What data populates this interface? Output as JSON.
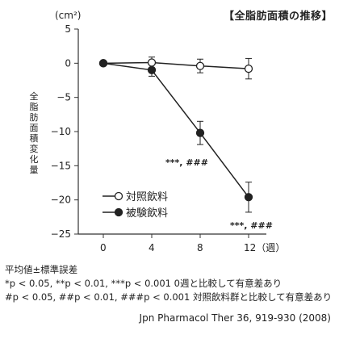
{
  "title": "【全脂肪面積の推移】",
  "chart_data": {
    "type": "line",
    "unit_label": "(cm²)",
    "ylabel": "全脂肪面積変化量",
    "x": [
      0,
      4,
      8,
      12
    ],
    "x_tick_labels": [
      "0",
      "4",
      "8",
      "12（週）"
    ],
    "ylim": [
      -25,
      5
    ],
    "y_ticks": [
      5,
      0,
      -5,
      -10,
      -15,
      -20,
      -25
    ],
    "y_tick_labels": [
      "5",
      "0",
      "−5",
      "−10",
      "−15",
      "−20",
      "−25"
    ],
    "series": [
      {
        "name": "対照飲料",
        "marker": "open-circle",
        "values": [
          0,
          0.1,
          -0.4,
          -0.8
        ],
        "errors": [
          0,
          0.8,
          1.0,
          1.5
        ]
      },
      {
        "name": "被験飲料",
        "marker": "filled-circle",
        "values": [
          0,
          -1.0,
          -10.2,
          -19.6
        ],
        "errors": [
          0,
          0.9,
          1.7,
          2.2
        ]
      }
    ],
    "annotations": [
      {
        "x": 8,
        "text": "***, ###"
      },
      {
        "x": 12,
        "text": "***, ###"
      }
    ]
  },
  "footnotes": [
    "平均値±標準誤差",
    "*p < 0.05, **p < 0.01, ***p < 0.001  0週と比較して有意差あり",
    "#p < 0.05, ##p < 0.01, ###p < 0.001  対照飲料群と比較して有意差あり"
  ],
  "source": "Jpn Pharmacol Ther 36, 919-930 (2008)",
  "colors": {
    "line": "#222222",
    "axis": "#333333"
  }
}
